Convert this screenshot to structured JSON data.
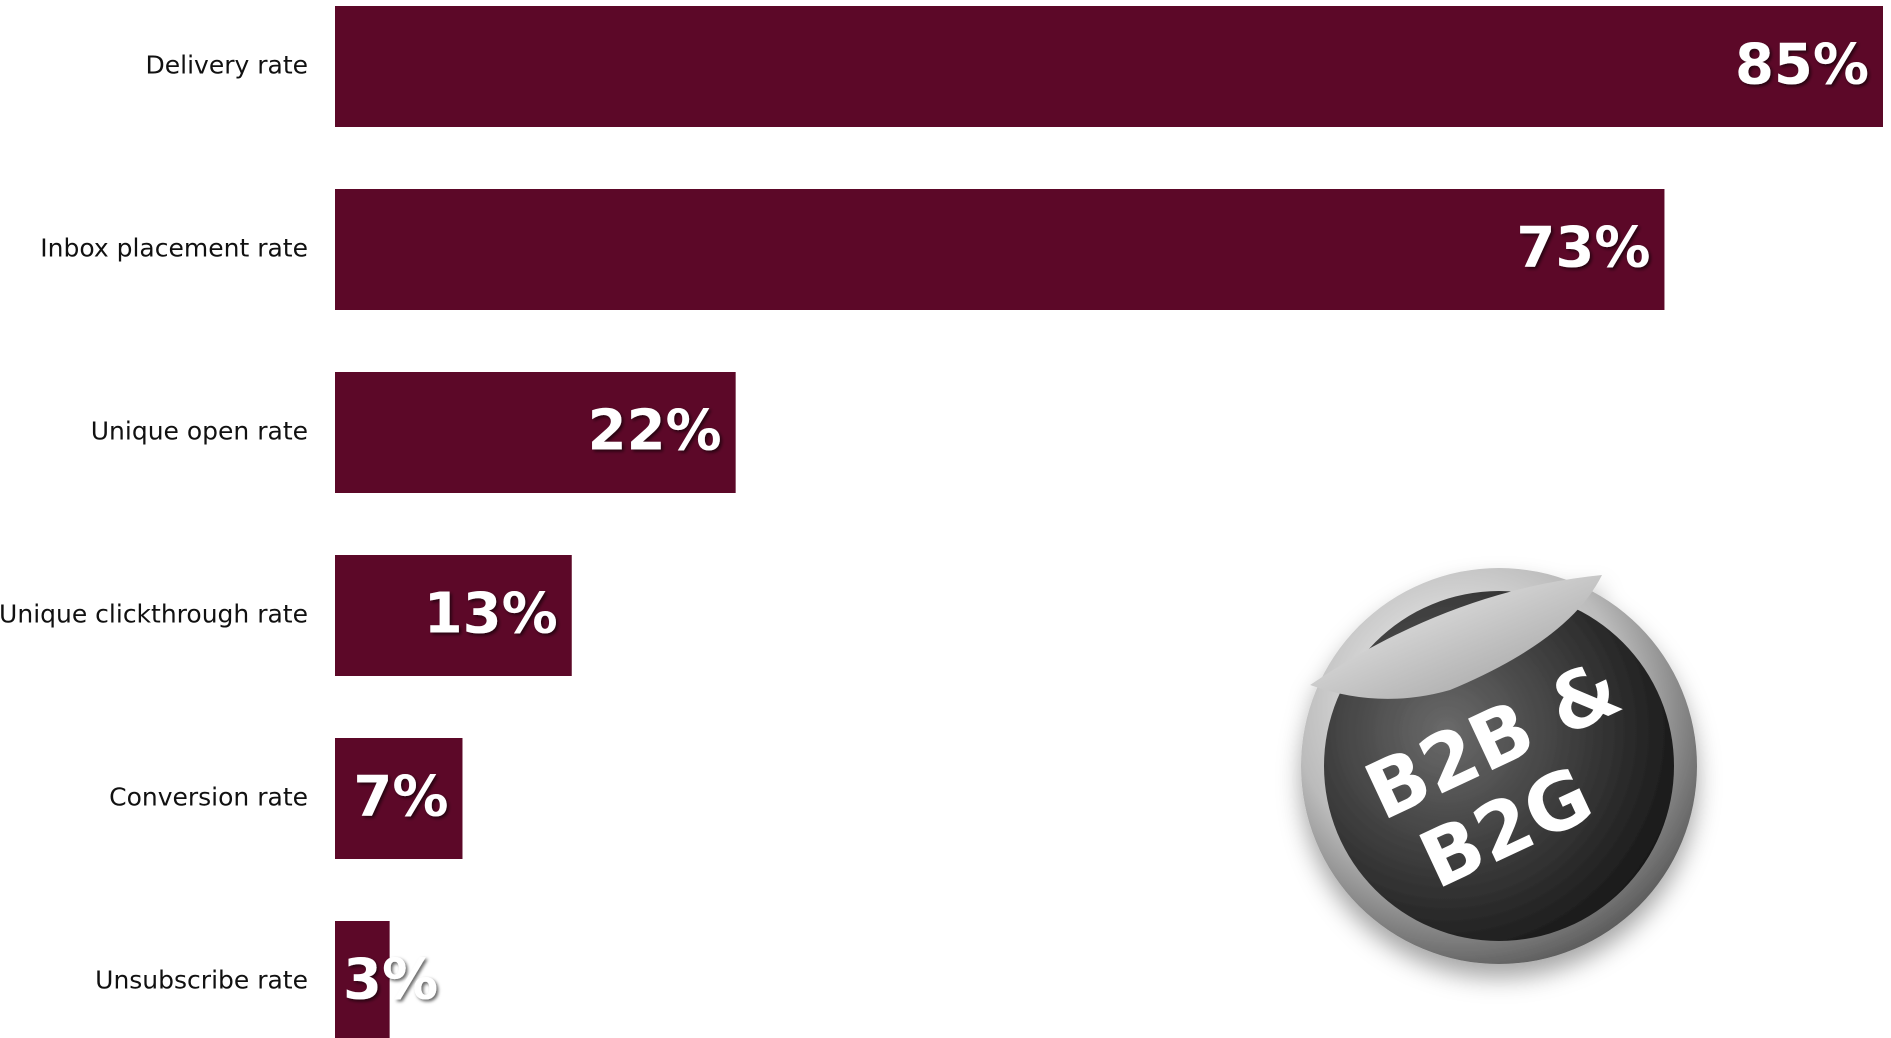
{
  "chart_data": {
    "type": "barh",
    "categories": [
      "Delivery rate",
      "Inbox placement rate",
      "Unique open rate",
      "Unique clickthrough rate",
      "Conversion rate",
      "Unsubscribe rate"
    ],
    "values": [
      85,
      73,
      22,
      13,
      7,
      3
    ],
    "value_labels": [
      "85%",
      "73%",
      "22%",
      "13%",
      "7%",
      "3%"
    ],
    "color": "#5c0828",
    "xlim": [
      0,
      85
    ],
    "annotations": [
      "B2B &",
      "B2G"
    ]
  }
}
